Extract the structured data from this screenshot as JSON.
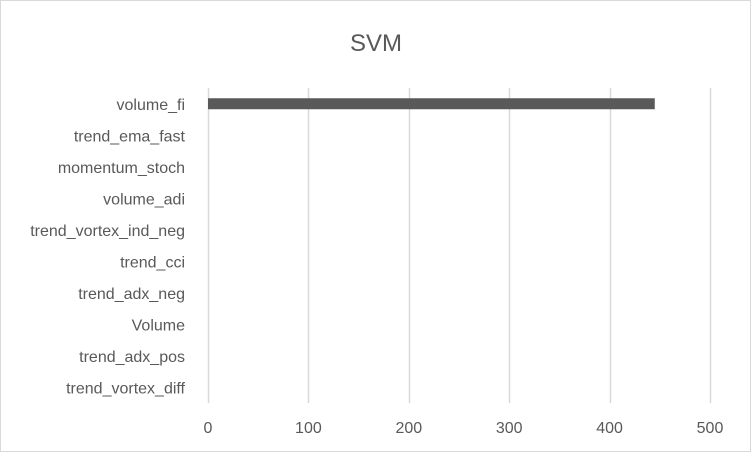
{
  "chart_data": {
    "type": "bar",
    "orientation": "horizontal",
    "title": "SVM",
    "xlabel": "",
    "ylabel": "",
    "categories": [
      "volume_fi",
      "trend_ema_fast",
      "momentum_stoch",
      "volume_adi",
      "trend_vortex_ind_neg",
      "trend_cci",
      "trend_adx_neg",
      "Volume",
      "trend_adx_pos",
      "trend_vortex_diff"
    ],
    "values": [
      445,
      0,
      0,
      0,
      0,
      0,
      0,
      0,
      0,
      0
    ],
    "xlim": [
      0,
      500
    ],
    "xticks": [
      0,
      100,
      200,
      300,
      400,
      500
    ],
    "grid": "vertical",
    "legend": "none",
    "bar_color": "#595959",
    "grid_color": "#d9d9d9",
    "text_color": "#595959"
  }
}
